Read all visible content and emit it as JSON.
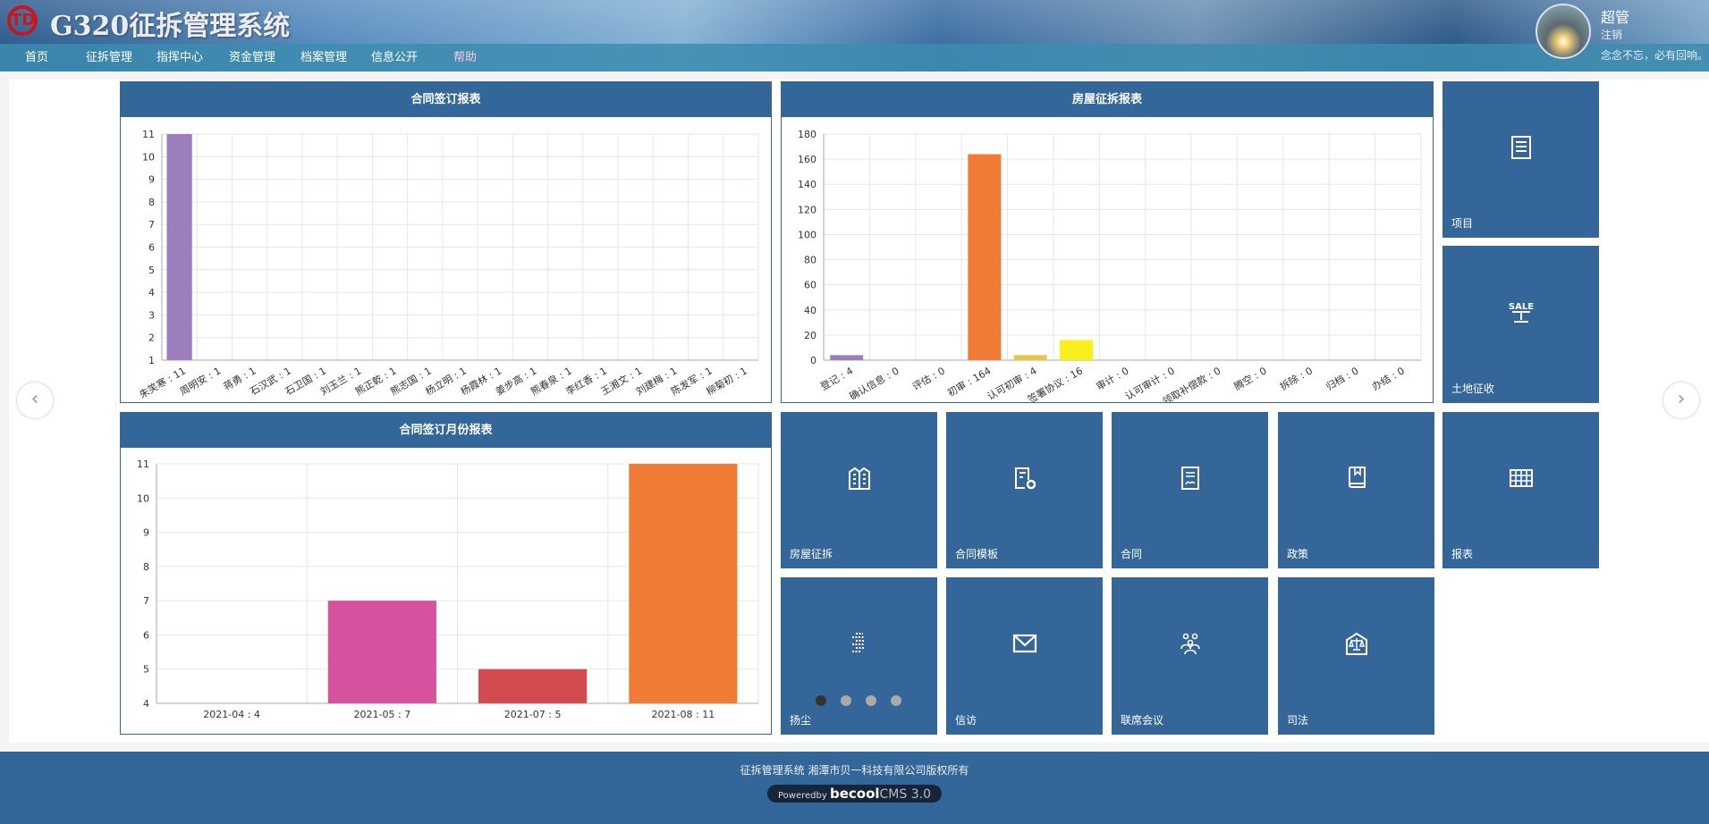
{
  "header": {
    "logo_text": "TD",
    "title": "G320征拆管理系统",
    "user_name": "超管",
    "logout": "注销",
    "motto": "念念不忘，必有回响。"
  },
  "nav": [
    "首页",
    "征拆管理",
    "指挥中心",
    "资金管理",
    "档案管理",
    "信息公开",
    "帮助"
  ],
  "colors": {
    "primary": "#336699",
    "purple": "#9b7fbd",
    "orange": "#ef7b35",
    "gold": "#e8c34a",
    "yellow": "#fbee1d",
    "pink": "#d6529f",
    "red": "#d34b4f"
  },
  "chart_data": [
    {
      "type": "bar",
      "title": "合同签订报表",
      "ylim": [
        1,
        11
      ],
      "yticks": [
        1,
        2,
        3,
        4,
        5,
        6,
        7,
        8,
        9,
        10,
        11
      ],
      "categories": [
        "朱笑寒 : 11",
        "周明安 : 1",
        "蒋勇 : 1",
        "石汉武 : 1",
        "石卫国 : 1",
        "刘玉兰 : 1",
        "熊正乾 : 1",
        "熊志国 : 1",
        "杨立明 : 1",
        "杨霞林 : 1",
        "姜步高 : 1",
        "熊春泉 : 1",
        "李红香 : 1",
        "王湘文 : 1",
        "刘建梅 : 1",
        "陈发军 : 1",
        "柳菊初 : 1"
      ],
      "values": [
        11,
        1,
        1,
        1,
        1,
        1,
        1,
        1,
        1,
        1,
        1,
        1,
        1,
        1,
        1,
        1,
        1
      ],
      "bar_colors": [
        "#9b7fbd"
      ]
    },
    {
      "type": "bar",
      "title": "房屋征拆报表",
      "ylim": [
        0,
        180
      ],
      "yticks": [
        0,
        20,
        40,
        60,
        80,
        100,
        120,
        140,
        160,
        180
      ],
      "categories": [
        "登记 : 4",
        "确认信息 : 0",
        "评估 : 0",
        "初审 : 164",
        "认可初审 : 4",
        "签署协议 : 16",
        "审计 : 0",
        "认可审计 : 0",
        "领取补偿款 : 0",
        "腾空 : 0",
        "拆除 : 0",
        "归档 : 0",
        "办结 : 0"
      ],
      "values": [
        4,
        0,
        0,
        164,
        4,
        16,
        0,
        0,
        0,
        0,
        0,
        0,
        0
      ],
      "bar_colors": [
        "#9b7fbd",
        "#9b7fbd",
        "#9b7fbd",
        "#ef7b35",
        "#e8c34a",
        "#fbee1d",
        "#9b7fbd",
        "#9b7fbd",
        "#9b7fbd",
        "#9b7fbd",
        "#9b7fbd",
        "#9b7fbd",
        "#9b7fbd"
      ]
    },
    {
      "type": "bar",
      "title": "合同签订月份报表",
      "ylim": [
        4,
        11
      ],
      "yticks": [
        4,
        5,
        6,
        7,
        8,
        9,
        10,
        11
      ],
      "categories": [
        "2021-04 : 4",
        "2021-05 : 7",
        "2021-07 : 5",
        "2021-08 : 11"
      ],
      "values": [
        4,
        7,
        5,
        11
      ],
      "bar_colors": [
        "#4e9ad4",
        "#d6529f",
        "#d34b4f",
        "#ef7b35"
      ]
    }
  ],
  "tiles": [
    {
      "label": "项目",
      "icon": "list-icon"
    },
    {
      "label": "土地征收",
      "icon": "sale-sign-icon"
    },
    {
      "label": "房屋征拆",
      "icon": "building-icon"
    },
    {
      "label": "合同模板",
      "icon": "document-gear-icon"
    },
    {
      "label": "合同",
      "icon": "signed-document-icon"
    },
    {
      "label": "政策",
      "icon": "book-icon"
    },
    {
      "label": "报表",
      "icon": "grid-icon"
    },
    {
      "label": "扬尘",
      "icon": "dust-icon"
    },
    {
      "label": "信访",
      "icon": "envelope-icon"
    },
    {
      "label": "联席会议",
      "icon": "people-icon"
    },
    {
      "label": "司法",
      "icon": "justice-icon"
    }
  ],
  "carousel": {
    "pages": 4,
    "active": 1
  },
  "footer": {
    "copyright": "征拆管理系统 湘潭市贝一科技有限公司版权所有",
    "powered_prefix": "Poweredby",
    "powered_brand": "becool",
    "powered_suffix": "CMS 3.0"
  }
}
